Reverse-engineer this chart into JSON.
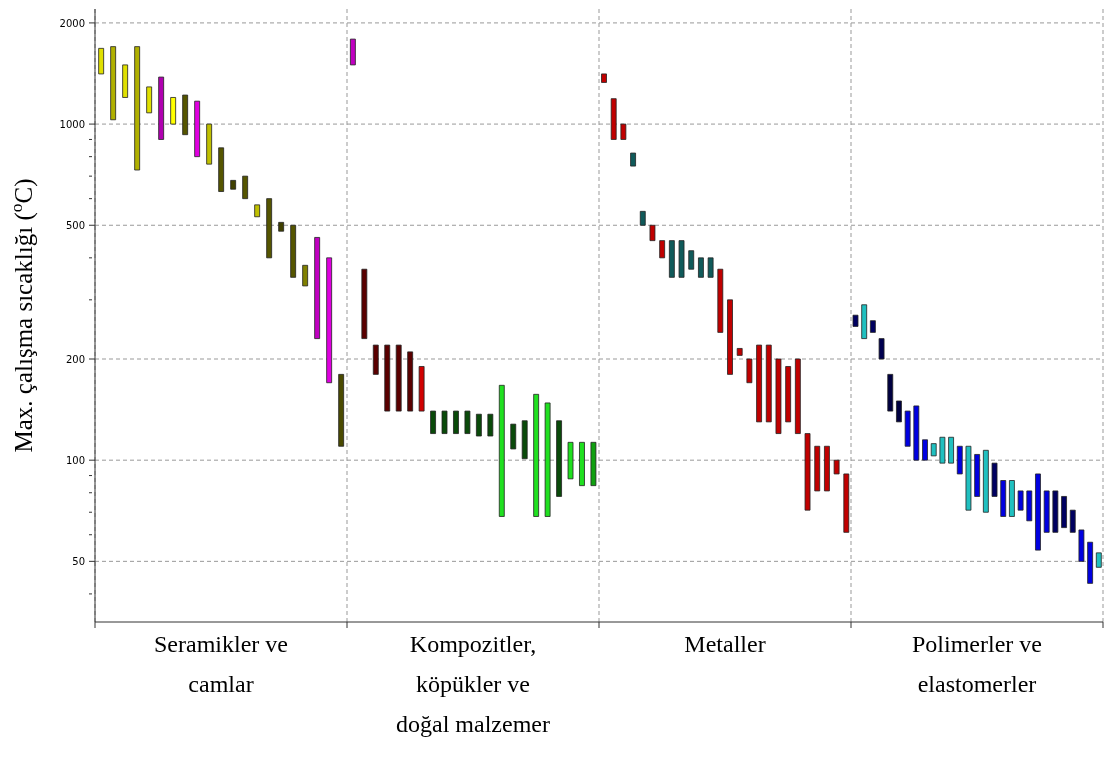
{
  "chart_data": {
    "type": "bar",
    "ylabel": "Max. çalışma sıcaklığı ($^{o}$C)",
    "log": true,
    "grid": true,
    "categories": [
      "Seramikler ve camlar",
      "Kompozitler, köpükler ve doğal malzemer",
      "Metaller",
      "Polimerler ve elastomerler"
    ],
    "ylim": [
      33,
      2200
    ],
    "yticks": [
      {
        "value": 40,
        "label": null
      },
      50,
      {
        "value": 60,
        "label": null
      },
      {
        "value": 70,
        "label": null
      },
      {
        "value": 80,
        "label": null
      },
      {
        "value": 90,
        "label": null
      },
      100,
      200,
      {
        "value": 300,
        "label": null
      },
      {
        "value": 400,
        "label": null
      },
      500,
      {
        "value": 600,
        "label": null
      },
      {
        "value": 700,
        "label": null
      },
      {
        "value": 800,
        "label": null
      },
      {
        "value": 900,
        "label": null
      },
      1000,
      2000
    ],
    "series": [
      {
        "values": [
          270,
          290,
          80,
          20
        ],
        "base": [
          1410,
          1500,
          1330,
          250
        ],
        "colors": [
          "#e0e000",
          "#c000c0",
          "#c00000",
          "#000060"
        ]
      },
      {
        "values": [
          670,
          140,
          290,
          60
        ],
        "base": [
          1030,
          230,
          900,
          230
        ],
        "colors": [
          "#b0b000",
          "#5a0000",
          "#c00000",
          "#20c0c0"
        ]
      },
      {
        "values": [
          300,
          40,
          100,
          20
        ],
        "base": [
          1200,
          180,
          900,
          240
        ],
        "colors": [
          "#e0e000",
          "#5a0000",
          "#c00000",
          "#000060"
        ]
      },
      {
        "values": [
          970,
          80,
          70,
          30
        ],
        "base": [
          730,
          140,
          750,
          200
        ],
        "colors": [
          "#b0b000",
          "#5a0000",
          "#105a5a",
          "#000050"
        ]
      },
      {
        "values": [
          210,
          80,
          50,
          40
        ],
        "base": [
          1080,
          140,
          500,
          140
        ],
        "colors": [
          "#e0e000",
          "#5a0000",
          "#105a5a",
          "#000040"
        ]
      },
      {
        "values": [
          480,
          70,
          50,
          20
        ],
        "base": [
          900,
          140,
          450,
          130
        ],
        "colors": [
          "#b000b0",
          "#5a0000",
          "#c00000",
          "#000040"
        ]
      },
      {
        "values": [
          200,
          50,
          50,
          30
        ],
        "base": [
          1000,
          140,
          400,
          110
        ],
        "colors": [
          "#ffff00",
          "#d00000",
          "#c00000",
          "#0000e0"
        ]
      },
      {
        "values": [
          290,
          20,
          100,
          45
        ],
        "base": [
          930,
          120,
          350,
          100
        ],
        "colors": [
          "#555500",
          "#0a4a0a",
          "#105a5a",
          "#0000e0"
        ]
      },
      {
        "values": [
          370,
          20,
          100,
          15
        ],
        "base": [
          800,
          120,
          350,
          100
        ],
        "colors": [
          "#e000e0",
          "#0a4a0a",
          "#105a5a",
          "#0000e0"
        ]
      },
      {
        "values": [
          240,
          20,
          50,
          9
        ],
        "base": [
          760,
          120,
          370,
          103
        ],
        "colors": [
          "#c0c000",
          "#0a4a0a",
          "#105a5a",
          "#20c0c0"
        ]
      },
      {
        "values": [
          220,
          20,
          50,
          19
        ],
        "base": [
          630,
          120,
          350,
          98
        ],
        "colors": [
          "#555500",
          "#0a4a0a",
          "#105a5a",
          "#20c0c0"
        ]
      },
      {
        "values": [
          40,
          19,
          50,
          19
        ],
        "base": [
          640,
          118,
          350,
          98
        ],
        "colors": [
          "#404000",
          "#0a4a0a",
          "#105a5a",
          "#20c0c0"
        ]
      },
      {
        "values": [
          100,
          19,
          130,
          19
        ],
        "base": [
          600,
          118,
          240,
          91
        ],
        "colors": [
          "#555500",
          "#0a4a0a",
          "#c00000",
          "#0000e0"
        ]
      },
      {
        "values": [
          45,
          99,
          120,
          39
        ],
        "base": [
          530,
          68,
          180,
          71
        ],
        "colors": [
          "#c0c000",
          "#20e020",
          "#c00000",
          "#20c0c0"
        ]
      },
      {
        "values": [
          200,
          20,
          10,
          26
        ],
        "base": [
          400,
          108,
          205,
          78
        ],
        "colors": [
          "#555500",
          "#0a4a0a",
          "#c00000",
          "#0000e0"
        ]
      },
      {
        "values": [
          30,
          30,
          30,
          37
        ],
        "base": [
          480,
          101,
          170,
          70
        ],
        "colors": [
          "#404000",
          "#0a4a0a",
          "#c00000",
          "#20c0c0"
        ]
      },
      {
        "values": [
          150,
          89,
          90,
          20
        ],
        "base": [
          350,
          68,
          130,
          78
        ],
        "colors": [
          "#555500",
          "#20e020",
          "#c00000",
          "#000060"
        ]
      },
      {
        "values": [
          50,
          80,
          90,
          19
        ],
        "base": [
          330,
          68,
          130,
          68
        ],
        "colors": [
          "#808000",
          "#20e020",
          "#c00000",
          "#0000e0"
        ]
      },
      {
        "values": [
          230,
          53,
          80,
          19
        ],
        "base": [
          230,
          78,
          120,
          68
        ],
        "colors": [
          "#c000c0",
          "#0a4a0a",
          "#c00000",
          "#20c0c0"
        ]
      },
      {
        "values": [
          230,
          25,
          60,
          10
        ],
        "base": [
          170,
          88,
          130,
          71
        ],
        "colors": [
          "#e000e0",
          "#20e020",
          "#c00000",
          "#0000e0"
        ]
      },
      {
        "values": [
          70,
          29,
          80,
          15
        ],
        "base": [
          110,
          84,
          120,
          66
        ],
        "colors": [
          "#4a4a00",
          "#20e020",
          "#c00000",
          "#0000e0"
        ]
      },
      {
        "values": [
          null,
          29,
          49,
          37
        ],
        "base": [
          null,
          84,
          71,
          54
        ],
        "colors": [
          null,
          "#10a010",
          "#c00000",
          "#0000e0"
        ]
      },
      {
        "values": [
          null,
          null,
          29,
          20
        ],
        "base": [
          null,
          null,
          81,
          61
        ],
        "colors": [
          null,
          null,
          "#c00000",
          "#0000e0"
        ]
      },
      {
        "values": [
          null,
          null,
          29,
          20
        ],
        "base": [
          null,
          null,
          81,
          61
        ],
        "colors": [
          null,
          null,
          "#c00000",
          "#000060"
        ]
      },
      {
        "values": [
          null,
          null,
          9,
          15
        ],
        "base": [
          null,
          null,
          91,
          63
        ],
        "colors": [
          null,
          null,
          "#c00000",
          "#000060"
        ]
      },
      {
        "values": [
          null,
          null,
          30,
          10
        ],
        "base": [
          null,
          null,
          61,
          61
        ],
        "colors": [
          null,
          null,
          "#c00000",
          "#000060"
        ]
      },
      {
        "values": [
          null,
          null,
          null,
          12
        ],
        "base": [
          null,
          null,
          null,
          50
        ],
        "colors": [
          null,
          null,
          null,
          "#0000e0"
        ]
      },
      {
        "values": [
          null,
          null,
          null,
          14
        ],
        "base": [
          null,
          null,
          null,
          43
        ],
        "colors": [
          null,
          null,
          null,
          "#0000e0"
        ]
      },
      {
        "values": [
          null,
          null,
          null,
          5
        ],
        "base": [
          null,
          null,
          null,
          48
        ],
        "colors": [
          null,
          null,
          null,
          "#20c0c0"
        ]
      }
    ]
  }
}
